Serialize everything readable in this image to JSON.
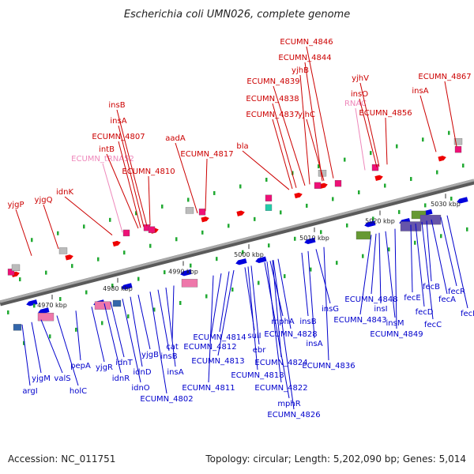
{
  "title": "Escherichia coli UMN026, complete genome",
  "footer": {
    "accession": "Accession: NC_011751",
    "summary": "Topology: circular; Length: 5,202,090 bp; Genes: 5,014"
  },
  "colors": {
    "top_label": "#cc0000",
    "rna_label": "#ee88bb",
    "bottom_label": "#0000cc",
    "forward_gene": "#ee0000",
    "reverse_gene": "#0000dd",
    "backbone": "#888888"
  },
  "ticks": [
    "4970 kbp",
    "4980 kbp",
    "4990 kbp",
    "5000 kbp",
    "5010 kbp",
    "5020 kbp",
    "5030 kbp"
  ],
  "top_labels": [
    {
      "text": "yjgP",
      "kind": "gene"
    },
    {
      "text": "yjgQ",
      "kind": "gene"
    },
    {
      "text": "idnK",
      "kind": "gene"
    },
    {
      "text": "ECUMN_tRNA52",
      "kind": "rna"
    },
    {
      "text": "intB",
      "kind": "gene"
    },
    {
      "text": "ECUMN_4807",
      "kind": "gene"
    },
    {
      "text": "insA",
      "kind": "gene"
    },
    {
      "text": "insB",
      "kind": "gene"
    },
    {
      "text": "ECUMN_4810",
      "kind": "gene"
    },
    {
      "text": "aadA",
      "kind": "gene"
    },
    {
      "text": "ECUMN_4817",
      "kind": "gene"
    },
    {
      "text": "bla",
      "kind": "gene"
    },
    {
      "text": "ECUMN_4837",
      "kind": "gene"
    },
    {
      "text": "ECUMN_4838",
      "kind": "gene"
    },
    {
      "text": "ECUMN_4839",
      "kind": "gene"
    },
    {
      "text": "yjhB",
      "kind": "gene"
    },
    {
      "text": "ECUMN_4844",
      "kind": "gene"
    },
    {
      "text": "ECUMN_4846",
      "kind": "gene"
    },
    {
      "text": "yjhC",
      "kind": "gene"
    },
    {
      "text": "RNAC",
      "kind": "rna"
    },
    {
      "text": "insO",
      "kind": "gene"
    },
    {
      "text": "yjhV",
      "kind": "gene"
    },
    {
      "text": "ECUMN_4856",
      "kind": "gene"
    },
    {
      "text": "insA",
      "kind": "gene"
    },
    {
      "text": "ECUMN_4867",
      "kind": "gene"
    }
  ],
  "bottom_labels": [
    "argI",
    "yjgM",
    "valS",
    "holC",
    "pepA",
    "yjgR",
    "idnR",
    "idnT",
    "idnO",
    "idnD",
    "yjgB",
    "ECUMN_4802",
    "insB",
    "insA",
    "cat",
    "ECUMN_4814",
    "ECUMN_4812",
    "ECUMN_4813",
    "ECUMN_4811",
    "sulI",
    "ebr",
    "ECUMN_4818",
    "mphA",
    "ECUMN_4828",
    "ECUMN_4824",
    "ECUMN_4822",
    "mphR",
    "ECUMN_4826",
    "insB",
    "insA",
    "insG",
    "ECUMN_4836",
    "ECUMN_4843",
    "ECUMN_4848",
    "insI",
    "insM",
    "ECUMN_4849",
    "fecE",
    "fecD",
    "fecC",
    "fecB",
    "fecA",
    "fecR",
    "fecI"
  ]
}
